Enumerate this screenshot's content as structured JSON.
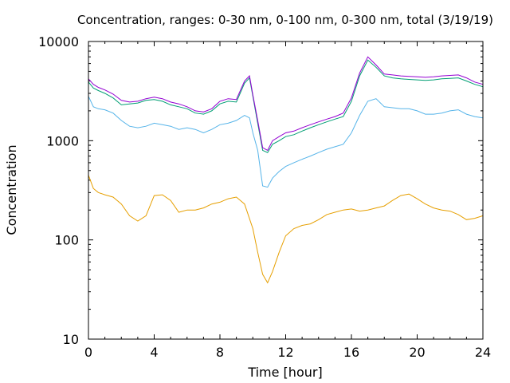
{
  "chart_data": {
    "type": "line",
    "title": "Concentration, ranges: 0-30 nm, 0-100 nm, 0-300 nm, total (3/19/19)",
    "xlabel": "Time [hour]",
    "ylabel": "Concentration",
    "xlim": [
      0,
      24
    ],
    "ylim": [
      10,
      10000
    ],
    "y_scale": "log",
    "x_ticks": [
      0,
      4,
      8,
      12,
      16,
      20,
      24
    ],
    "y_ticks": [
      10,
      100,
      1000,
      10000
    ],
    "x_tick_labels": [
      "0",
      "4",
      "8",
      "12",
      "16",
      "20",
      "24"
    ],
    "y_tick_labels": [
      "10",
      "100",
      "1000",
      "10000"
    ],
    "grid": false,
    "legend": "none",
    "series": [
      {
        "color": "#e69f00",
        "x": [
          0,
          0.3,
          0.6,
          1,
          1.5,
          2,
          2.5,
          3,
          3.5,
          4,
          4.5,
          5,
          5.5,
          6,
          6.5,
          7,
          7.5,
          8,
          8.5,
          9,
          9.5,
          10,
          10.3,
          10.6,
          10.9,
          11.2,
          11.6,
          12,
          12.5,
          13,
          13.5,
          14,
          14.5,
          15,
          15.5,
          16,
          16.5,
          17,
          17.5,
          18,
          18.5,
          19,
          19.5,
          20,
          20.5,
          21,
          21.5,
          22,
          22.5,
          23,
          23.5,
          24
        ],
        "y": [
          450,
          330,
          300,
          285,
          270,
          230,
          175,
          155,
          175,
          280,
          285,
          250,
          190,
          200,
          200,
          210,
          230,
          240,
          260,
          270,
          230,
          130,
          75,
          45,
          37,
          48,
          75,
          110,
          130,
          140,
          145,
          160,
          180,
          190,
          200,
          205,
          195,
          200,
          210,
          220,
          250,
          280,
          290,
          260,
          230,
          210,
          200,
          195,
          180,
          160,
          165,
          175
        ]
      },
      {
        "color": "#56b4e9",
        "x": [
          0,
          0.3,
          0.6,
          1,
          1.5,
          2,
          2.5,
          3,
          3.5,
          4,
          4.5,
          5,
          5.5,
          6,
          6.5,
          7,
          7.5,
          8,
          8.5,
          9,
          9.5,
          9.8,
          10,
          10.3,
          10.6,
          10.9,
          11.2,
          11.6,
          12,
          12.5,
          13,
          13.5,
          14,
          14.5,
          15,
          15.5,
          16,
          16.5,
          17,
          17.5,
          18,
          18.5,
          19,
          19.5,
          20,
          20.5,
          21,
          21.5,
          22,
          22.5,
          23,
          23.5,
          24
        ],
        "y": [
          2800,
          2200,
          2100,
          2050,
          1900,
          1600,
          1400,
          1350,
          1400,
          1500,
          1450,
          1400,
          1300,
          1350,
          1300,
          1200,
          1300,
          1450,
          1500,
          1600,
          1800,
          1700,
          1200,
          800,
          350,
          340,
          420,
          490,
          550,
          600,
          650,
          700,
          760,
          820,
          870,
          920,
          1200,
          1800,
          2500,
          2650,
          2200,
          2150,
          2100,
          2100,
          2000,
          1850,
          1850,
          1900,
          2000,
          2050,
          1850,
          1750,
          1700
        ]
      },
      {
        "color": "#009e73",
        "x": [
          0,
          0.3,
          0.6,
          1,
          1.5,
          2,
          2.5,
          3,
          3.5,
          4,
          4.5,
          5,
          5.5,
          6,
          6.5,
          7,
          7.5,
          8,
          8.5,
          9,
          9.5,
          9.8,
          10,
          10.3,
          10.6,
          10.9,
          11.2,
          11.6,
          12,
          12.5,
          13,
          13.5,
          14,
          14.5,
          15,
          15.5,
          16,
          16.5,
          17,
          17.5,
          18,
          18.5,
          19,
          19.5,
          20,
          20.5,
          21,
          21.5,
          22,
          22.5,
          23,
          23.5,
          24
        ],
        "y": [
          3900,
          3400,
          3200,
          3000,
          2700,
          2300,
          2350,
          2400,
          2550,
          2600,
          2500,
          2300,
          2200,
          2100,
          1900,
          1850,
          2000,
          2350,
          2500,
          2450,
          3800,
          4300,
          2800,
          1500,
          800,
          760,
          920,
          1000,
          1100,
          1150,
          1250,
          1350,
          1450,
          1550,
          1650,
          1750,
          2500,
          4500,
          6500,
          5500,
          4500,
          4300,
          4200,
          4150,
          4100,
          4050,
          4100,
          4200,
          4250,
          4300,
          4000,
          3700,
          3500
        ]
      },
      {
        "color": "#9400d3",
        "x": [
          0,
          0.3,
          0.6,
          1,
          1.5,
          2,
          2.5,
          3,
          3.5,
          4,
          4.5,
          5,
          5.5,
          6,
          6.5,
          7,
          7.5,
          8,
          8.5,
          9,
          9.5,
          9.8,
          10,
          10.3,
          10.6,
          10.9,
          11.2,
          11.6,
          12,
          12.5,
          13,
          13.5,
          14,
          14.5,
          15,
          15.5,
          16,
          16.5,
          17,
          17.5,
          18,
          18.5,
          19,
          19.5,
          20,
          20.5,
          21,
          21.5,
          22,
          22.5,
          23,
          23.5,
          24
        ],
        "y": [
          4200,
          3700,
          3450,
          3250,
          2950,
          2550,
          2450,
          2500,
          2650,
          2750,
          2650,
          2450,
          2350,
          2200,
          2000,
          1950,
          2100,
          2500,
          2650,
          2600,
          4000,
          4500,
          2900,
          1600,
          850,
          800,
          1000,
          1100,
          1200,
          1250,
          1350,
          1450,
          1550,
          1650,
          1750,
          1900,
          2700,
          4800,
          7000,
          5800,
          4700,
          4600,
          4500,
          4450,
          4400,
          4350,
          4400,
          4500,
          4550,
          4600,
          4300,
          3900,
          3700
        ]
      }
    ]
  }
}
